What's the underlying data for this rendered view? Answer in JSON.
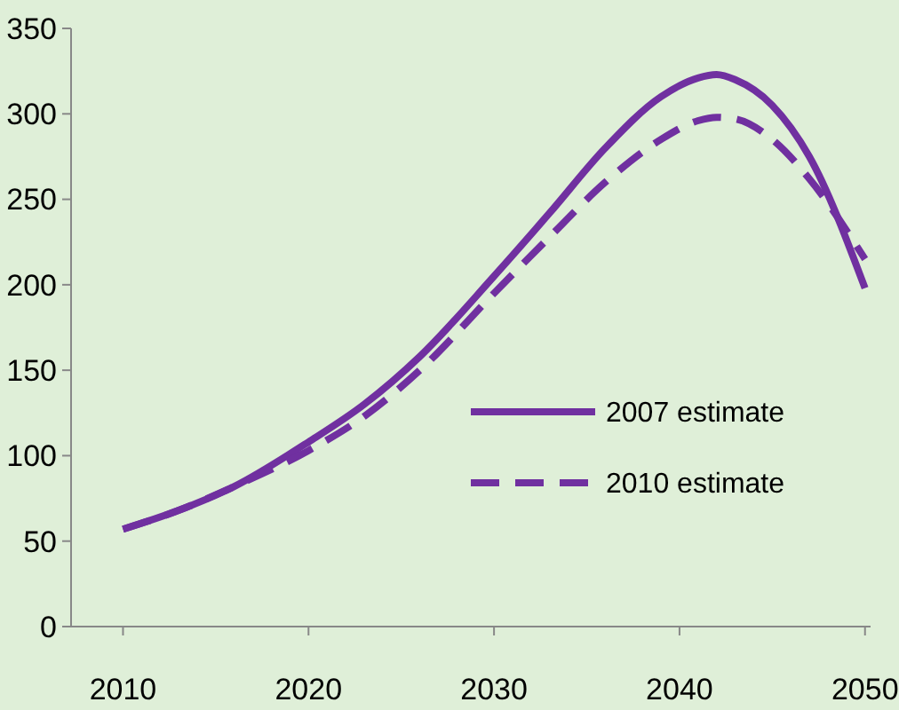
{
  "chart_data": {
    "type": "line",
    "x": [
      2010,
      2013,
      2016,
      2020,
      2023,
      2026,
      2030,
      2033,
      2036,
      2039,
      2041,
      2042,
      2043,
      2045,
      2047,
      2050
    ],
    "series": [
      {
        "name": "2007 estimate",
        "color": "#7030a0",
        "line_style": "solid",
        "values": [
          57,
          68,
          82,
          108,
          130,
          158,
          205,
          242,
          280,
          310,
          321,
          323,
          320,
          305,
          275,
          198
        ]
      },
      {
        "name": "2010 estimate",
        "color": "#7030a0",
        "line_style": "dashed",
        "values": [
          57,
          68,
          82,
          103,
          123,
          150,
          195,
          228,
          260,
          285,
          296,
          298,
          297,
          285,
          262,
          215
        ]
      }
    ],
    "xlim": [
      2007.2,
      2050.3
    ],
    "xticks": [
      2010,
      2020,
      2030,
      2040,
      2050
    ],
    "ylim": [
      0,
      350
    ],
    "yticks": [
      0,
      50,
      100,
      150,
      200,
      250,
      300,
      350
    ],
    "grid": false,
    "legend": "right"
  }
}
